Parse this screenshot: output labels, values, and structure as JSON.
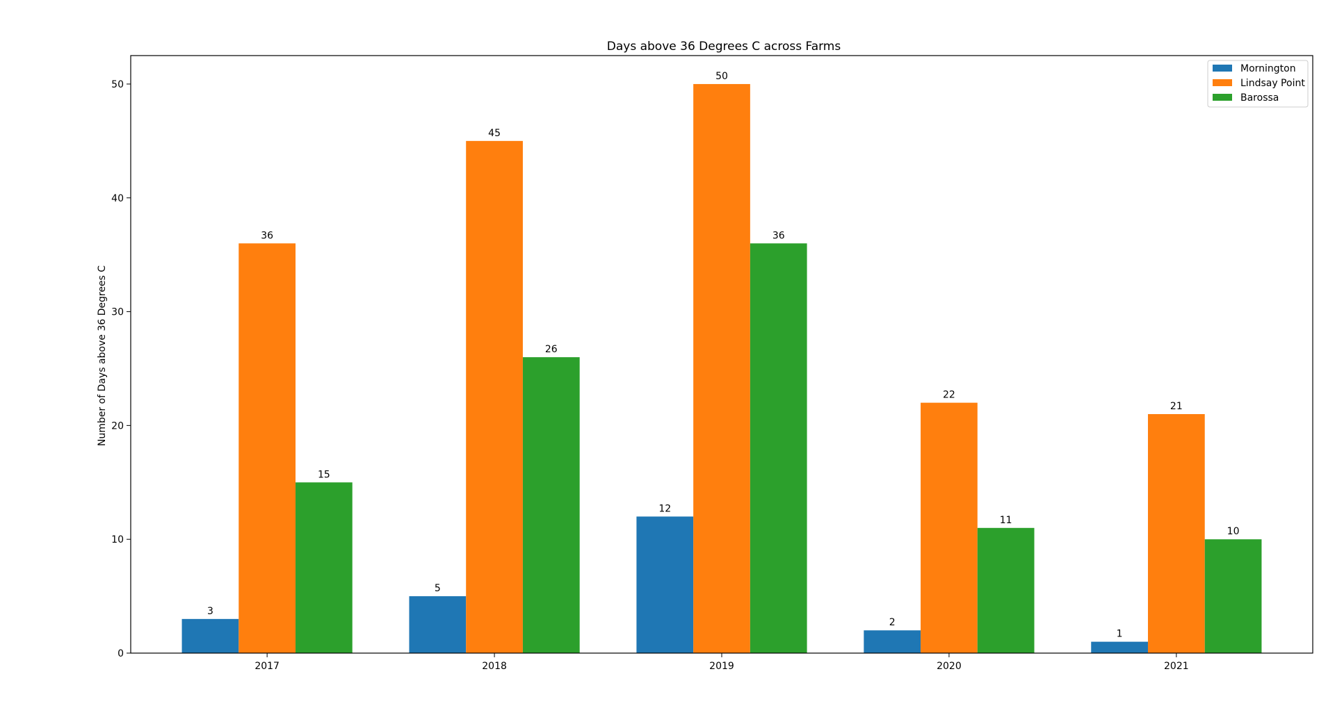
{
  "chart_data": {
    "type": "bar",
    "title": "Days above 36 Degrees C across Farms",
    "xlabel": "",
    "ylabel": "Number of Days above 36 Degrees C",
    "categories": [
      "2017",
      "2018",
      "2019",
      "2020",
      "2021"
    ],
    "series": [
      {
        "name": "Mornington",
        "color": "#1f77b4",
        "values": [
          3,
          5,
          12,
          2,
          1
        ]
      },
      {
        "name": "Lindsay Point",
        "color": "#ff7f0e",
        "values": [
          36,
          45,
          50,
          22,
          21
        ]
      },
      {
        "name": "Barossa",
        "color": "#2ca02c",
        "values": [
          15,
          26,
          36,
          11,
          10
        ]
      }
    ],
    "ylim": [
      0,
      52.5
    ],
    "yticks": [
      0,
      10,
      20,
      30,
      40,
      50
    ],
    "grid": false,
    "legend_position": "top-right",
    "data_labels": true
  }
}
